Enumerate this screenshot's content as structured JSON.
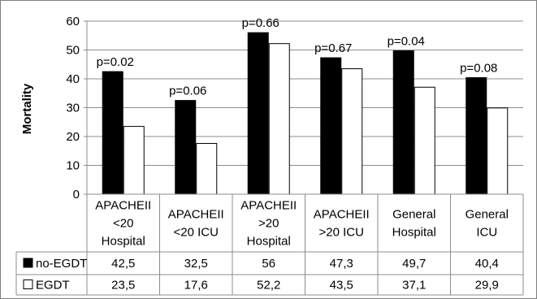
{
  "chart_data": {
    "type": "bar",
    "ylabel": "Mortality",
    "ylim": [
      0,
      60
    ],
    "yticks": [
      0,
      10,
      20,
      30,
      40,
      50,
      60
    ],
    "grid": true,
    "categories": [
      [
        "APACHEII",
        "<20",
        "Hospital"
      ],
      [
        "APACHEII",
        "<20 ICU"
      ],
      [
        "APACHEII",
        ">20",
        "Hospital"
      ],
      [
        "APACHEII",
        ">20 ICU"
      ],
      [
        "General",
        "Hospital"
      ],
      [
        "General",
        "ICU"
      ]
    ],
    "series": [
      {
        "name": "no-EGDT",
        "color": "#000000",
        "values": [
          42.5,
          32.5,
          56,
          47.3,
          49.7,
          40.4
        ],
        "labels": [
          "42,5",
          "32,5",
          "56",
          "47,3",
          "49,7",
          "40,4"
        ]
      },
      {
        "name": "EGDT",
        "color": "#ffffff",
        "values": [
          23.5,
          17.6,
          52.2,
          43.5,
          37.1,
          29.9
        ],
        "labels": [
          "23,5",
          "17,6",
          "52,2",
          "43,5",
          "37,1",
          "29,9"
        ]
      }
    ],
    "annotations": [
      "p=0.02",
      "p=0.06",
      "p=0.66",
      "p=0.67",
      "p=0.04",
      "p=0.08"
    ]
  }
}
